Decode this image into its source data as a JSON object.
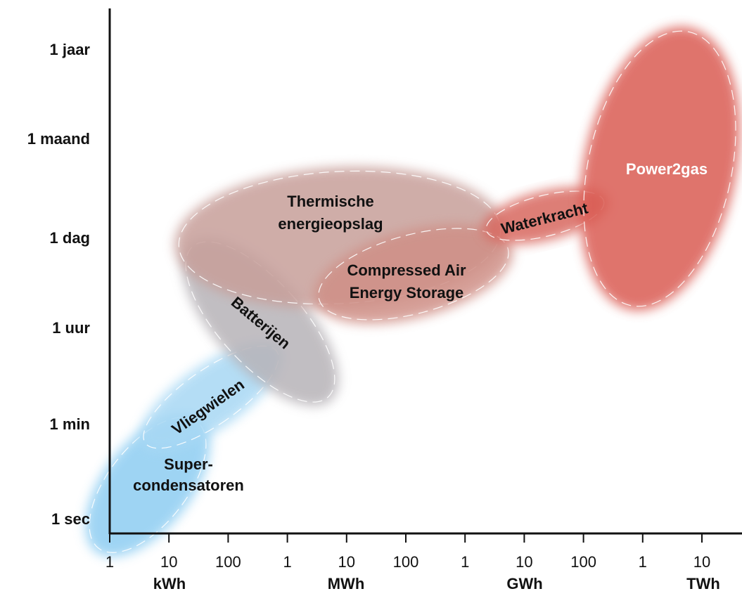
{
  "chart_data": {
    "type": "scatter",
    "title": "",
    "x_scale": "log",
    "y_scale": "log",
    "x_tick_labels": [
      "1",
      "10",
      "100",
      "1",
      "10",
      "100",
      "1",
      "10",
      "100",
      "1",
      "10"
    ],
    "x_unit_labels": [
      "kWh",
      "MWh",
      "GWh",
      "TWh"
    ],
    "y_tick_labels": [
      "1 sec",
      "1 min",
      "1 uur",
      "1 dag",
      "1 maand",
      "1 jaar"
    ],
    "regions": [
      {
        "name": "Super-\ncondensatoren",
        "lines": [
          "Super-",
          "condensatoren"
        ],
        "color": "#8ecdf2"
      },
      {
        "name": "Vliegwielen",
        "lines": [
          "Vliegwielen"
        ],
        "color": "#a8d8f4"
      },
      {
        "name": "Batterijen",
        "lines": [
          "Batterijen"
        ],
        "color": "#b7b3b8"
      },
      {
        "name": "Thermische energieopslag",
        "lines": [
          "Thermische",
          "energieopslag"
        ],
        "color": "#c79f9a"
      },
      {
        "name": "Compressed Air Energy Storage",
        "lines": [
          "Compressed Air",
          "Energy Storage"
        ],
        "color": "#cf8f86"
      },
      {
        "name": "Waterkracht",
        "lines": [
          "Waterkracht"
        ],
        "color": "#d8685f"
      },
      {
        "name": "Power2gas",
        "lines": [
          "Power2gas"
        ],
        "color": "#da5c53"
      }
    ]
  }
}
